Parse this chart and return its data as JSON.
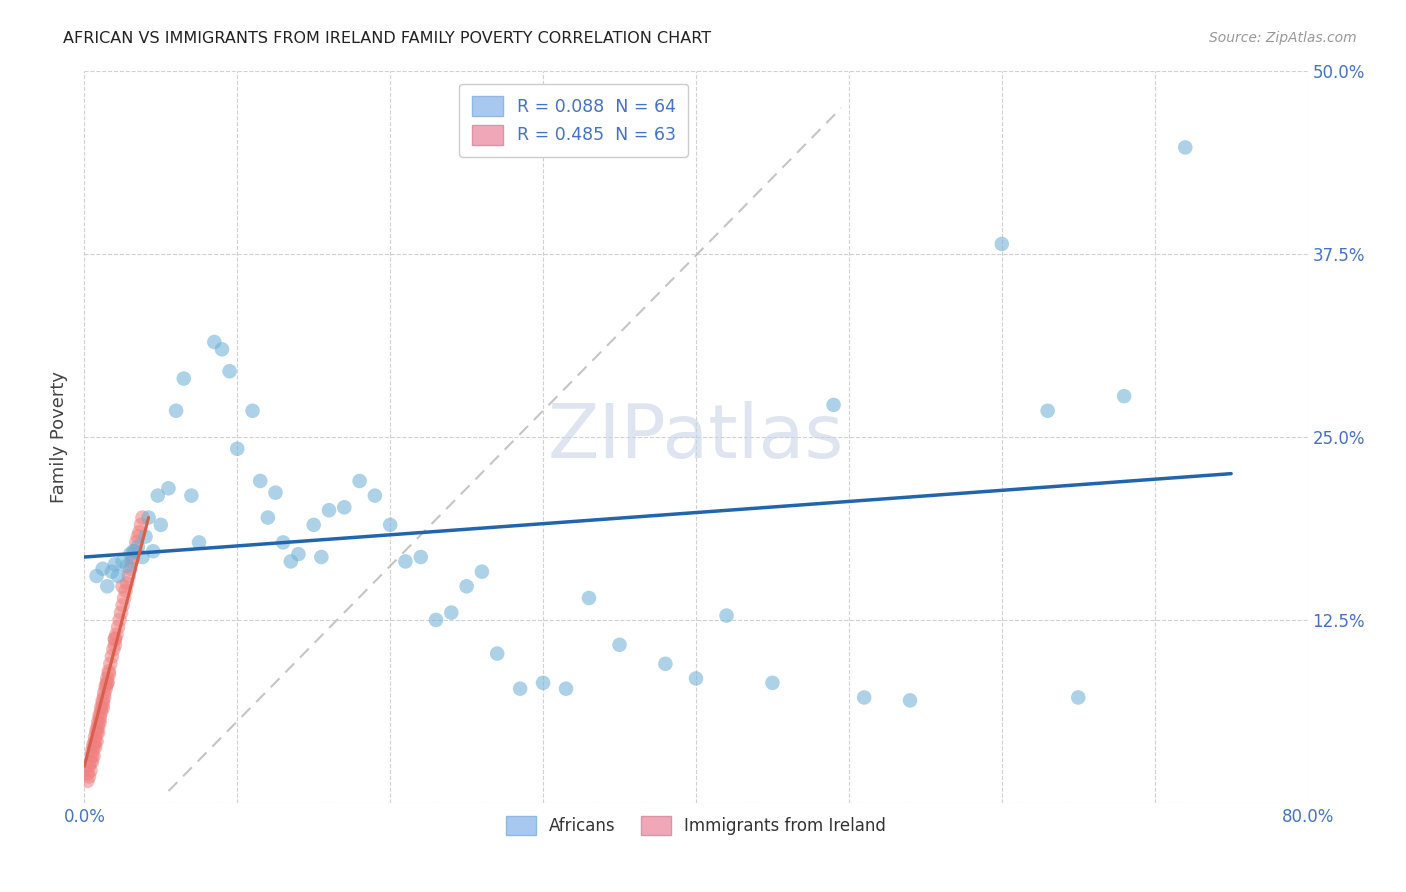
{
  "title": "AFRICAN VS IMMIGRANTS FROM IRELAND FAMILY POVERTY CORRELATION CHART",
  "source": "Source: ZipAtlas.com",
  "ylabel": "Family Poverty",
  "xlim": [
    0.0,
    0.8
  ],
  "ylim": [
    0.0,
    0.5
  ],
  "xticks": [
    0.0,
    0.1,
    0.2,
    0.3,
    0.4,
    0.5,
    0.6,
    0.7,
    0.8
  ],
  "xticklabels": [
    "0.0%",
    "",
    "",
    "",
    "",
    "",
    "",
    "",
    "80.0%"
  ],
  "yticks": [
    0.0,
    0.125,
    0.25,
    0.375,
    0.5
  ],
  "yticklabels_right": [
    "",
    "12.5%",
    "25.0%",
    "37.5%",
    "50.0%"
  ],
  "legend_r_labels": [
    "R = 0.088  N = 64",
    "R = 0.485  N = 63"
  ],
  "legend_labels": [
    "Africans",
    "Immigrants from Ireland"
  ],
  "africans_color": "#6baed6",
  "ireland_color": "#f08080",
  "africans_edge": "#4292c6",
  "ireland_edge": "#e05070",
  "blue_line_color": "#2166ac",
  "pink_line_color": "#d6604d",
  "diag_line_color": "#bbbbbb",
  "legend_box_color": "#a8c8f0",
  "legend_box_color2": "#f0a8b8",
  "text_blue": "#4472c4",
  "watermark_color": "#c8d4e8",
  "africans_x": [
    0.008,
    0.012,
    0.015,
    0.018,
    0.02,
    0.022,
    0.025,
    0.028,
    0.03,
    0.032,
    0.035,
    0.038,
    0.04,
    0.042,
    0.045,
    0.048,
    0.05,
    0.055,
    0.06,
    0.065,
    0.07,
    0.075,
    0.085,
    0.09,
    0.095,
    0.1,
    0.11,
    0.115,
    0.12,
    0.125,
    0.13,
    0.135,
    0.14,
    0.15,
    0.155,
    0.16,
    0.17,
    0.18,
    0.19,
    0.2,
    0.21,
    0.22,
    0.23,
    0.24,
    0.25,
    0.26,
    0.27,
    0.285,
    0.3,
    0.315,
    0.33,
    0.35,
    0.38,
    0.4,
    0.42,
    0.45,
    0.49,
    0.51,
    0.54,
    0.6,
    0.63,
    0.65,
    0.68,
    0.72
  ],
  "africans_y": [
    0.155,
    0.16,
    0.148,
    0.158,
    0.163,
    0.155,
    0.165,
    0.162,
    0.17,
    0.172,
    0.175,
    0.168,
    0.182,
    0.195,
    0.172,
    0.21,
    0.19,
    0.215,
    0.268,
    0.29,
    0.21,
    0.178,
    0.315,
    0.31,
    0.295,
    0.242,
    0.268,
    0.22,
    0.195,
    0.212,
    0.178,
    0.165,
    0.17,
    0.19,
    0.168,
    0.2,
    0.202,
    0.22,
    0.21,
    0.19,
    0.165,
    0.168,
    0.125,
    0.13,
    0.148,
    0.158,
    0.102,
    0.078,
    0.082,
    0.078,
    0.14,
    0.108,
    0.095,
    0.085,
    0.128,
    0.082,
    0.272,
    0.072,
    0.07,
    0.382,
    0.268,
    0.072,
    0.278,
    0.448
  ],
  "ireland_x": [
    0.002,
    0.003,
    0.004,
    0.005,
    0.005,
    0.006,
    0.006,
    0.007,
    0.007,
    0.008,
    0.008,
    0.009,
    0.009,
    0.01,
    0.01,
    0.011,
    0.011,
    0.012,
    0.012,
    0.013,
    0.013,
    0.014,
    0.014,
    0.015,
    0.015,
    0.016,
    0.016,
    0.017,
    0.018,
    0.019,
    0.02,
    0.02,
    0.021,
    0.022,
    0.023,
    0.024,
    0.025,
    0.026,
    0.027,
    0.028,
    0.029,
    0.03,
    0.031,
    0.032,
    0.033,
    0.034,
    0.035,
    0.036,
    0.037,
    0.038,
    0.002,
    0.003,
    0.004,
    0.005,
    0.006,
    0.007,
    0.008,
    0.009,
    0.01,
    0.012,
    0.015,
    0.02,
    0.025
  ],
  "ireland_y": [
    0.02,
    0.025,
    0.028,
    0.032,
    0.035,
    0.038,
    0.04,
    0.042,
    0.045,
    0.048,
    0.05,
    0.052,
    0.055,
    0.058,
    0.06,
    0.062,
    0.065,
    0.068,
    0.07,
    0.072,
    0.075,
    0.078,
    0.08,
    0.082,
    0.085,
    0.088,
    0.09,
    0.095,
    0.1,
    0.105,
    0.108,
    0.112,
    0.115,
    0.12,
    0.125,
    0.13,
    0.135,
    0.14,
    0.145,
    0.15,
    0.155,
    0.16,
    0.165,
    0.168,
    0.172,
    0.178,
    0.182,
    0.185,
    0.19,
    0.195,
    0.015,
    0.018,
    0.022,
    0.028,
    0.032,
    0.038,
    0.042,
    0.048,
    0.055,
    0.065,
    0.082,
    0.112,
    0.148
  ],
  "blue_line_x": [
    0.0,
    0.75
  ],
  "blue_line_y": [
    0.168,
    0.225
  ],
  "pink_line_x": [
    0.0,
    0.042
  ],
  "pink_line_y": [
    0.025,
    0.195
  ],
  "diag_line_x": [
    0.055,
    0.495
  ],
  "diag_line_y": [
    0.008,
    0.475
  ]
}
